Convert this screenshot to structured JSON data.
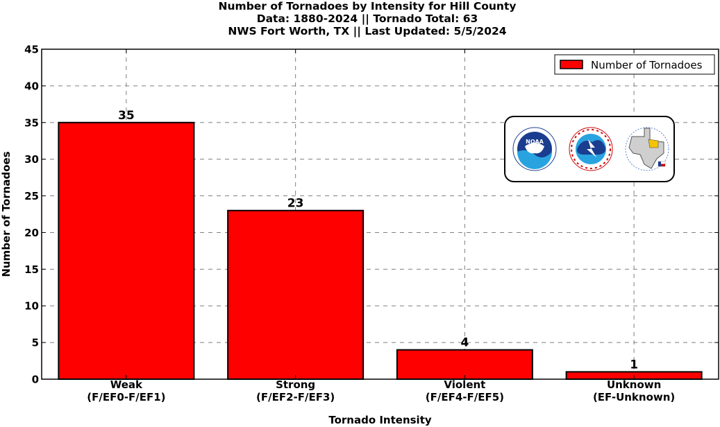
{
  "title_lines": [
    "Number of Tornadoes by Intensity for Hill County",
    "Data: 1880-2024 || Tornado Total: 63",
    "NWS Fort Worth, TX || Last Updated: 5/5/2024"
  ],
  "colors": {
    "bar": "#ff0000",
    "edge": "#000000",
    "grid": "#7f7f7f"
  },
  "logos": [
    "noaa-logo",
    "national-weather-service-logo",
    "north-texas-map-logo"
  ],
  "chart_data": {
    "type": "bar",
    "categories": [
      "Weak\n(F/EF0-F/EF1)",
      "Strong\n(F/EF2-F/EF3)",
      "Violent\n(F/EF4-F/EF5)",
      "Unknown\n(EF-Unknown)"
    ],
    "series": [
      {
        "name": "Number of Tornadoes",
        "values": [
          35,
          23,
          4,
          1
        ]
      }
    ],
    "data_labels": [
      "35",
      "23",
      "4",
      "1"
    ],
    "xlabel": "Tornado Intensity",
    "ylabel": "Number of Tornadoes",
    "ylim": [
      0,
      45
    ],
    "yticks": [
      0,
      5,
      10,
      15,
      20,
      25,
      30,
      35,
      40,
      45
    ],
    "grid": true,
    "legend": "top-right"
  }
}
